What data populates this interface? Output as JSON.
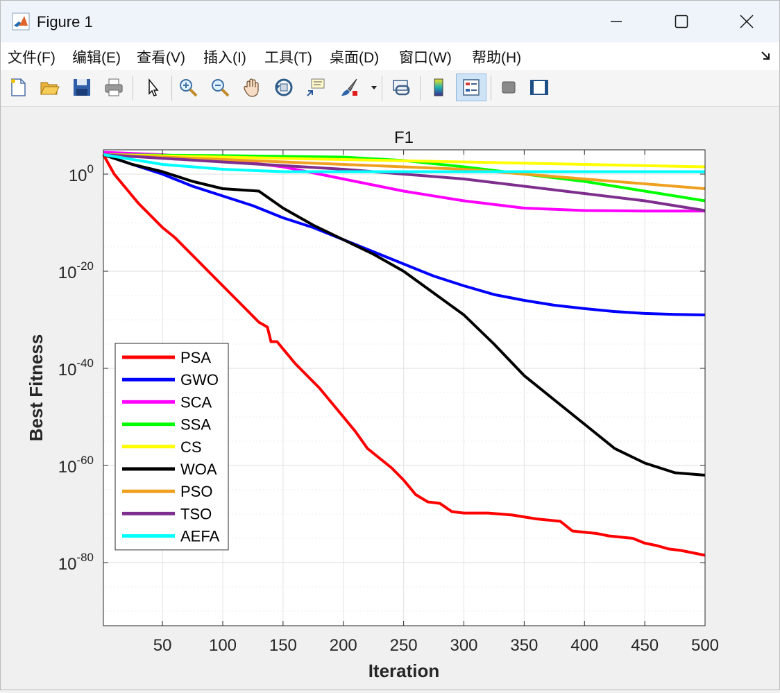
{
  "window": {
    "title": "Figure 1"
  },
  "menu": {
    "items": [
      "文件(F)",
      "编辑(E)",
      "查看(V)",
      "插入(I)",
      "工具(T)",
      "桌面(D)",
      "窗口(W)",
      "帮助(H)"
    ]
  },
  "toolbar": {
    "buttons": [
      "new-figure-icon",
      "open-folder-icon",
      "save-icon",
      "print-icon",
      "pointer-icon",
      "zoom-in-icon",
      "zoom-out-icon",
      "pan-hand-icon",
      "rotate-3d-icon",
      "data-cursor-icon",
      "brush-icon",
      "link-plot-icon",
      "colorbar-icon",
      "legend-icon",
      "hide-plot-tools-icon",
      "show-plot-tools-icon"
    ]
  },
  "chart_data": {
    "type": "line",
    "title": "F1",
    "xlabel": "Iteration",
    "ylabel": "Best Fitness",
    "xlim": [
      1,
      500
    ],
    "ylim_log10": [
      -93,
      5
    ],
    "y_scale": "log",
    "grid": true,
    "legend_position": "bottom-left",
    "x_ticks": [
      50,
      100,
      150,
      200,
      250,
      300,
      350,
      400,
      450,
      500
    ],
    "y_ticks": [
      {
        "label": "10",
        "exp": "0",
        "value_log10": 0
      },
      {
        "label": "10",
        "exp": "-20",
        "value_log10": -20
      },
      {
        "label": "10",
        "exp": "-40",
        "value_log10": -40
      },
      {
        "label": "10",
        "exp": "-60",
        "value_log10": -60
      },
      {
        "label": "10",
        "exp": "-80",
        "value_log10": -80
      }
    ],
    "series": [
      {
        "name": "PSA",
        "color": "#ff0000",
        "points_log10": [
          [
            1,
            4
          ],
          [
            10,
            0
          ],
          [
            20,
            -3
          ],
          [
            30,
            -6
          ],
          [
            40,
            -8.5
          ],
          [
            50,
            -11
          ],
          [
            60,
            -13
          ],
          [
            70,
            -15.5
          ],
          [
            80,
            -18
          ],
          [
            90,
            -20.5
          ],
          [
            100,
            -23
          ],
          [
            110,
            -25.5
          ],
          [
            120,
            -28
          ],
          [
            130,
            -30.5
          ],
          [
            137,
            -31.5
          ],
          [
            140,
            -34.5
          ],
          [
            145,
            -34.5
          ],
          [
            150,
            -36
          ],
          [
            160,
            -39
          ],
          [
            170,
            -41.5
          ],
          [
            180,
            -44
          ],
          [
            190,
            -47
          ],
          [
            200,
            -50
          ],
          [
            210,
            -53
          ],
          [
            220,
            -56.5
          ],
          [
            230,
            -58.5
          ],
          [
            240,
            -60.5
          ],
          [
            250,
            -63
          ],
          [
            260,
            -66
          ],
          [
            270,
            -67.5
          ],
          [
            280,
            -67.8
          ],
          [
            290,
            -69.5
          ],
          [
            300,
            -69.8
          ],
          [
            320,
            -69.8
          ],
          [
            340,
            -70.2
          ],
          [
            360,
            -71
          ],
          [
            380,
            -71.5
          ],
          [
            390,
            -73.5
          ],
          [
            410,
            -74
          ],
          [
            420,
            -74.5
          ],
          [
            440,
            -75
          ],
          [
            450,
            -76
          ],
          [
            460,
            -76.5
          ],
          [
            470,
            -77.2
          ],
          [
            480,
            -77.5
          ],
          [
            490,
            -78
          ],
          [
            500,
            -78.5
          ]
        ]
      },
      {
        "name": "GWO",
        "color": "#0000ff",
        "points_log10": [
          [
            1,
            4
          ],
          [
            25,
            2
          ],
          [
            50,
            0
          ],
          [
            75,
            -2.5
          ],
          [
            100,
            -4.5
          ],
          [
            125,
            -6.5
          ],
          [
            150,
            -9
          ],
          [
            175,
            -11
          ],
          [
            200,
            -13.5
          ],
          [
            225,
            -16
          ],
          [
            250,
            -18.5
          ],
          [
            275,
            -21
          ],
          [
            300,
            -23
          ],
          [
            325,
            -24.8
          ],
          [
            350,
            -26
          ],
          [
            375,
            -27
          ],
          [
            400,
            -27.7
          ],
          [
            425,
            -28.3
          ],
          [
            450,
            -28.7
          ],
          [
            475,
            -28.9
          ],
          [
            500,
            -29
          ]
        ]
      },
      {
        "name": "SCA",
        "color": "#ff00ff",
        "points_log10": [
          [
            1,
            4.5
          ],
          [
            50,
            4
          ],
          [
            100,
            3
          ],
          [
            150,
            1.5
          ],
          [
            200,
            -1
          ],
          [
            250,
            -3.5
          ],
          [
            300,
            -5.5
          ],
          [
            350,
            -7
          ],
          [
            400,
            -7.5
          ],
          [
            450,
            -7.6
          ],
          [
            500,
            -7.6
          ]
        ]
      },
      {
        "name": "SSA",
        "color": "#00ff00",
        "points_log10": [
          [
            1,
            4
          ],
          [
            100,
            3.8
          ],
          [
            200,
            3.5
          ],
          [
            250,
            2.8
          ],
          [
            300,
            1.5
          ],
          [
            350,
            0
          ],
          [
            400,
            -1.5
          ],
          [
            450,
            -3.5
          ],
          [
            500,
            -5.5
          ]
        ]
      },
      {
        "name": "CS",
        "color": "#ffff00",
        "points_log10": [
          [
            1,
            4
          ],
          [
            100,
            3.5
          ],
          [
            200,
            3
          ],
          [
            300,
            2.5
          ],
          [
            400,
            2
          ],
          [
            500,
            1.5
          ]
        ]
      },
      {
        "name": "WOA",
        "color": "#000000",
        "points_log10": [
          [
            1,
            4
          ],
          [
            25,
            2
          ],
          [
            50,
            0.5
          ],
          [
            75,
            -1.5
          ],
          [
            100,
            -3
          ],
          [
            130,
            -3.5
          ],
          [
            150,
            -7
          ],
          [
            175,
            -10.5
          ],
          [
            200,
            -13.5
          ],
          [
            225,
            -16.5
          ],
          [
            250,
            -20
          ],
          [
            275,
            -24.5
          ],
          [
            300,
            -29
          ],
          [
            325,
            -35
          ],
          [
            350,
            -41.5
          ],
          [
            375,
            -46.5
          ],
          [
            400,
            -51.5
          ],
          [
            425,
            -56.5
          ],
          [
            450,
            -59.5
          ],
          [
            475,
            -61.5
          ],
          [
            500,
            -62
          ]
        ]
      },
      {
        "name": "PSO",
        "color": "#f0a020",
        "points_log10": [
          [
            1,
            4
          ],
          [
            100,
            3
          ],
          [
            200,
            2
          ],
          [
            300,
            1
          ],
          [
            350,
            0
          ],
          [
            400,
            -1
          ],
          [
            450,
            -2
          ],
          [
            500,
            -3
          ]
        ]
      },
      {
        "name": "TSO",
        "color": "#7e2f8e",
        "points_log10": [
          [
            1,
            4
          ],
          [
            100,
            2.5
          ],
          [
            200,
            1
          ],
          [
            250,
            0
          ],
          [
            300,
            -1
          ],
          [
            350,
            -2.5
          ],
          [
            400,
            -4
          ],
          [
            450,
            -5.5
          ],
          [
            500,
            -7.5
          ]
        ]
      },
      {
        "name": "AEFA",
        "color": "#00ffff",
        "points_log10": [
          [
            1,
            4
          ],
          [
            50,
            2
          ],
          [
            100,
            1
          ],
          [
            150,
            0.5
          ],
          [
            200,
            0.5
          ],
          [
            300,
            0.5
          ],
          [
            400,
            0.5
          ],
          [
            500,
            0.5
          ]
        ]
      }
    ]
  }
}
